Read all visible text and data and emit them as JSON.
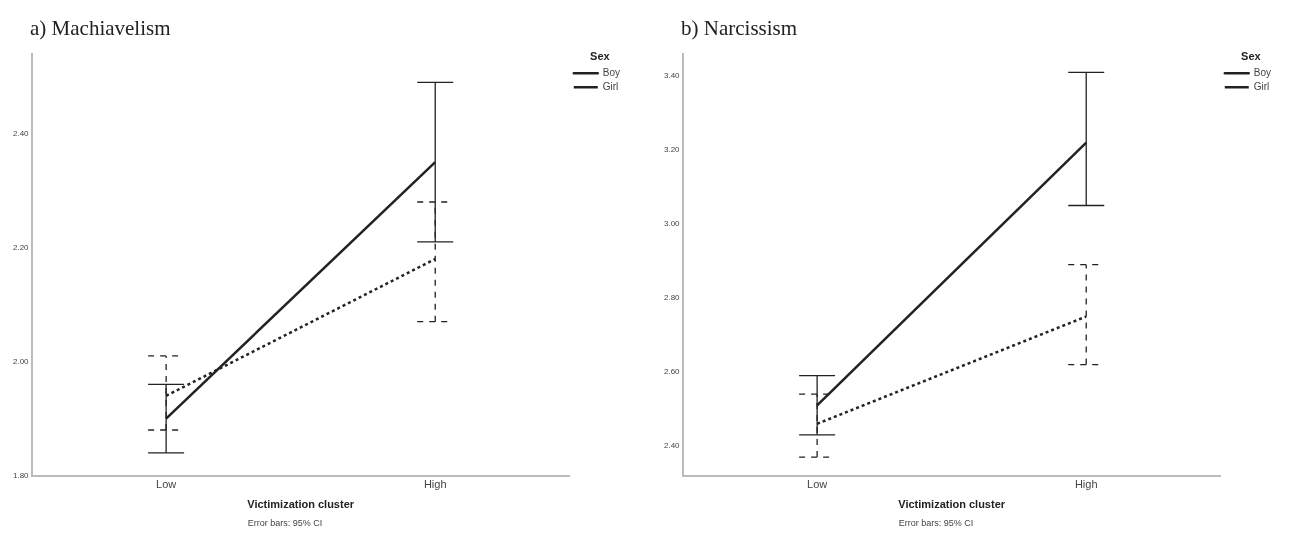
{
  "chart_data": [
    {
      "type": "line",
      "title": "a) Machiavelism",
      "xlabel": "Victimization cluster",
      "legend_title": "Sex",
      "legend": "top right",
      "grid": false,
      "marker": "none",
      "annotations": [
        "Error bars: 95% CI"
      ],
      "categories": [
        "Low",
        "High"
      ],
      "ylim": [
        1.8,
        2.54
      ],
      "yticks": [
        {
          "value": 1.8,
          "label": "1.80"
        },
        {
          "value": 2.0,
          "label": "2.00"
        },
        {
          "value": 2.2,
          "label": "2.20"
        },
        {
          "value": 2.4,
          "label": "2.40"
        }
      ],
      "series": [
        {
          "name": "Boy",
          "color": "#222222",
          "line_style": "solid",
          "values": [
            1.9,
            2.35
          ],
          "errors": [
            [
              1.84,
              1.96
            ],
            [
              2.21,
              2.49
            ]
          ]
        },
        {
          "name": "Girl",
          "color": "#222222",
          "line_style": "dotted",
          "values": [
            1.94,
            2.18
          ],
          "errors": [
            [
              1.88,
              2.01
            ],
            [
              2.07,
              2.28
            ]
          ]
        }
      ]
    },
    {
      "type": "line",
      "title": "b) Narcissism",
      "xlabel": "Victimization cluster",
      "legend_title": "Sex",
      "legend": "top right",
      "grid": false,
      "marker": "none",
      "annotations": [
        "Error bars: 95% CI"
      ],
      "categories": [
        "Low",
        "High"
      ],
      "ylim": [
        2.32,
        3.46
      ],
      "yticks": [
        {
          "value": 2.4,
          "label": "2.40"
        },
        {
          "value": 2.6,
          "label": "2.60"
        },
        {
          "value": 2.8,
          "label": "2.80"
        },
        {
          "value": 3.0,
          "label": "3.00"
        },
        {
          "value": 3.2,
          "label": "3.20"
        },
        {
          "value": 3.4,
          "label": "3.40"
        }
      ],
      "series": [
        {
          "name": "Boy",
          "color": "#222222",
          "line_style": "solid",
          "values": [
            2.51,
            3.22
          ],
          "errors": [
            [
              2.43,
              2.59
            ],
            [
              3.05,
              3.41
            ]
          ]
        },
        {
          "name": "Girl",
          "color": "#222222",
          "line_style": "dotted",
          "values": [
            2.46,
            2.75
          ],
          "errors": [
            [
              2.37,
              2.54
            ],
            [
              2.62,
              2.89
            ]
          ]
        }
      ]
    }
  ]
}
